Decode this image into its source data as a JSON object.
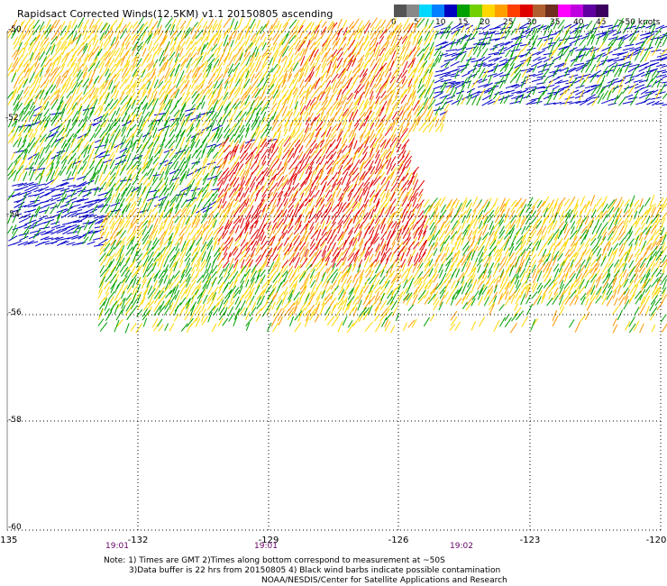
{
  "title": "Rapidsact Corrected Winds(12.5KM) v1.1 20150805 ascending",
  "colorbar": {
    "labels": [
      "0",
      "5",
      "10",
      "15",
      "20",
      "25",
      "30",
      "35",
      "40",
      "45",
      ">50 knots"
    ],
    "colors": [
      "#555555",
      "#888888",
      "#00d8ff",
      "#0080ff",
      "#0000c0",
      "#00a000",
      "#70d000",
      "#ffd800",
      "#ffa000",
      "#ff4000",
      "#e00000",
      "#b06030",
      "#703020",
      "#ff00ff",
      "#c000e0",
      "#6000a0",
      "#3c0060"
    ]
  },
  "axes": {
    "longitude_labels": [
      "-135",
      "-132",
      "-129",
      "-126",
      "-123",
      "-120"
    ],
    "latitude_labels": [
      "-50",
      "-52",
      "-54",
      "-56",
      "-58",
      "-60"
    ]
  },
  "swath_times": [
    "19:01",
    "19:01",
    "19:02"
  ],
  "notes": [
    "Note: 1) Times are GMT 2)Times along bottom correspond to measurement at ~50S",
    "3)Data buffer is 22 hrs from 20150805 4) Black wind barbs indicate possible contamination",
    "NOAA/NESDIS/Center for Satellite Applications and Research"
  ],
  "wind_palette": {
    "blue": "#0000c8",
    "green": "#00a000",
    "yellow": "#ffd800",
    "orange": "#ff9800",
    "red": "#e00000"
  }
}
